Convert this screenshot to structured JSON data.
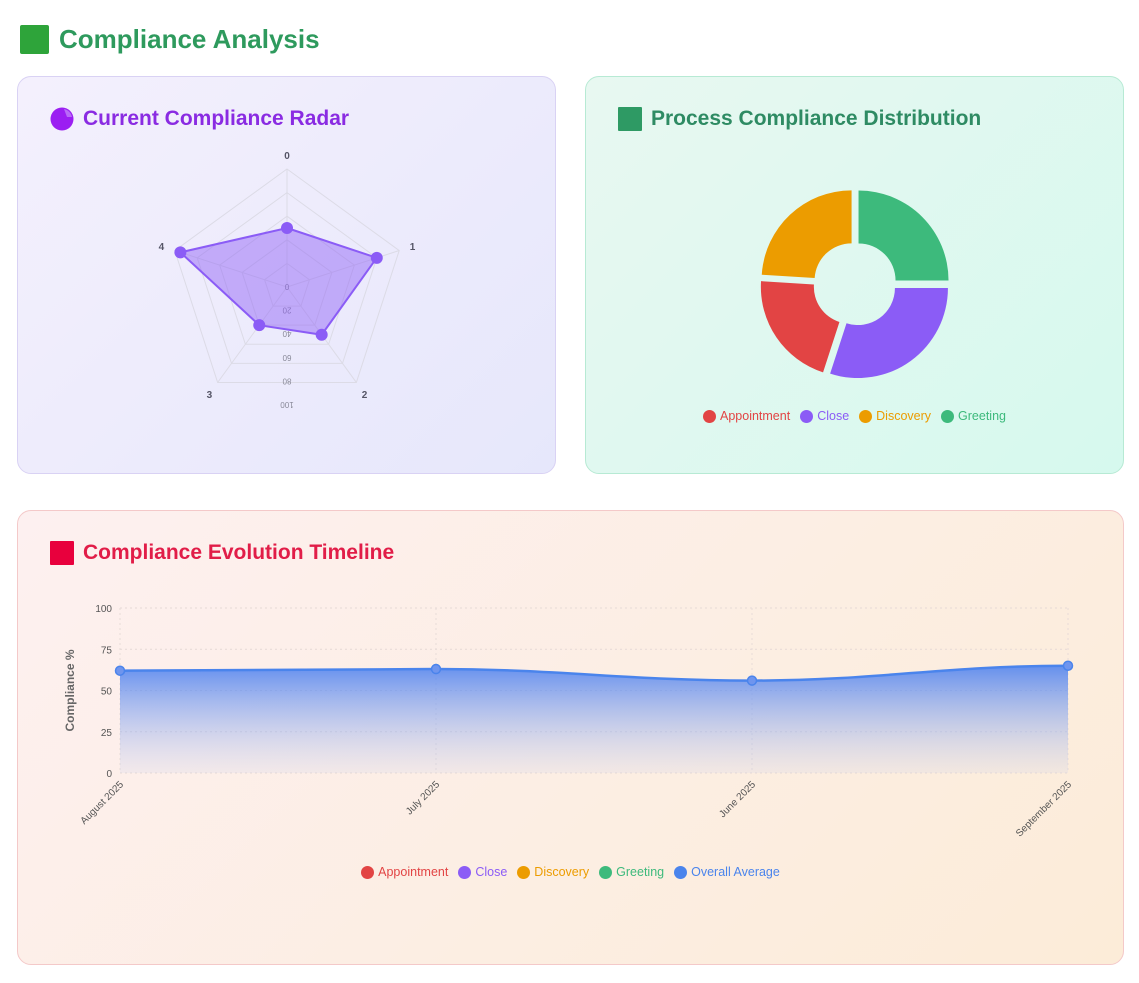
{
  "page": {
    "title": "Compliance Analysis",
    "title_icon": "green-square-icon",
    "accent": "#2e9a5d"
  },
  "radar_panel": {
    "title": "Current Compliance Radar",
    "title_icon": "purple-circle-icon",
    "title_color": "#8a2be2"
  },
  "donut_panel": {
    "title": "Process Compliance Distribution",
    "title_icon": "teal-square-icon",
    "title_color": "#2e8b63"
  },
  "timeline_panel": {
    "title": "Compliance Evolution Timeline",
    "title_icon": "red-square-icon",
    "title_color": "#e11d48"
  },
  "donut_legend": [
    {
      "label": "Appointment",
      "color": "#e24444"
    },
    {
      "label": "Close",
      "color": "#8b5cf6"
    },
    {
      "label": "Discovery",
      "color": "#ec9c00"
    },
    {
      "label": "Greeting",
      "color": "#3dba7c"
    }
  ],
  "timeline_legend": [
    {
      "label": "Appointment",
      "color": "#e24444"
    },
    {
      "label": "Close",
      "color": "#8b5cf6"
    },
    {
      "label": "Discovery",
      "color": "#ec9c00"
    },
    {
      "label": "Greeting",
      "color": "#3dba7c"
    },
    {
      "label": "Overall Average",
      "color": "#4a84ec"
    }
  ],
  "chart_data": [
    {
      "type": "radar",
      "axes": [
        "0",
        "1",
        "2",
        "3",
        "4"
      ],
      "values": [
        50,
        80,
        50,
        40,
        95
      ],
      "rlim": [
        0,
        100
      ],
      "ticks": [
        "0",
        "20",
        "40",
        "60",
        "80",
        "100"
      ],
      "color": "#8b5cf6"
    },
    {
      "type": "pie",
      "donut": true,
      "labels": [
        "Appointment",
        "Close",
        "Discovery",
        "Greeting"
      ],
      "values": [
        21,
        30,
        24,
        25
      ],
      "colors": [
        "#e24444",
        "#8b5cf6",
        "#ec9c00",
        "#3dba7c"
      ],
      "legend": "bottom"
    },
    {
      "type": "area",
      "categories": [
        "August 2025",
        "July 2025",
        "June 2025",
        "September 2025"
      ],
      "series": [
        {
          "name": "Overall Average",
          "values": [
            62,
            63,
            56,
            65
          ],
          "color": "#4a84ec"
        }
      ],
      "ylabel": "Compliance %",
      "ylim": [
        0,
        100
      ],
      "yticks": [
        "0",
        "25",
        "50",
        "75",
        "100"
      ],
      "legend": "bottom",
      "grid": true
    }
  ]
}
